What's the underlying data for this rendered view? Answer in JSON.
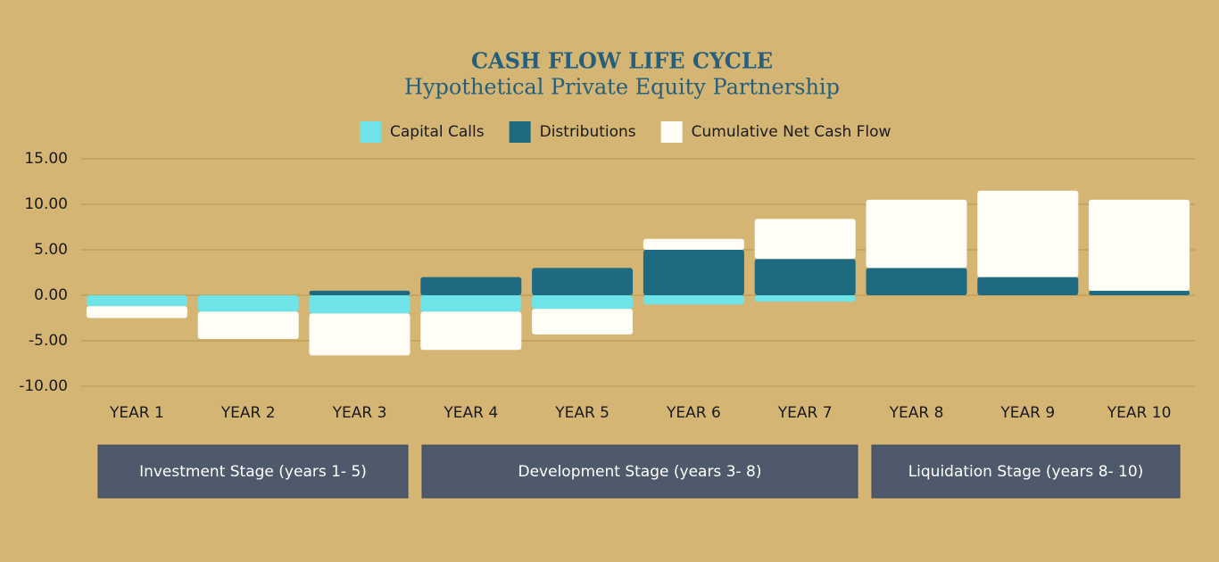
{
  "chart_data": {
    "type": "bar",
    "stacked": true,
    "title": "CASH FLOW LIFE CYCLE",
    "subtitle": "Hypothetical Private Equity Partnership",
    "categories": [
      "YEAR 1",
      "YEAR 2",
      "YEAR 3",
      "YEAR 4",
      "YEAR 5",
      "YEAR 6",
      "YEAR 7",
      "YEAR 8",
      "YEAR 9",
      "YEAR 10"
    ],
    "series": [
      {
        "name": "Capital Calls",
        "color": "#6ee3e8",
        "values": [
          -1.2,
          -1.8,
          -2.0,
          -1.8,
          -1.5,
          -1.0,
          -0.7,
          0,
          0,
          0
        ]
      },
      {
        "name": "Distributions",
        "color": "#1e6a80",
        "values": [
          0,
          0,
          0.5,
          2.0,
          3.0,
          5.0,
          4.0,
          3.0,
          2.0,
          0.5
        ]
      },
      {
        "name": "Cumulative Net Cash Flow",
        "color": "#fffdf6",
        "values": [
          -1.3,
          -3.0,
          -4.6,
          -4.2,
          -2.8,
          1.2,
          4.4,
          7.5,
          9.5,
          10.0
        ]
      }
    ],
    "ylim": [
      -10,
      15
    ],
    "yticks": [
      {
        "value": -10,
        "label": "-10.00"
      },
      {
        "value": -5,
        "label": "-5.00"
      },
      {
        "value": 0,
        "label": "0.00"
      },
      {
        "value": 5,
        "label": "5.00"
      },
      {
        "value": 10,
        "label": "10.00"
      },
      {
        "value": 15,
        "label": "15.00"
      }
    ],
    "grid": true,
    "legend": "top",
    "annotations": [
      "Investment Stage (years 1- 5)",
      "Development Stage (years 3- 8)",
      "Liquidation Stage (years 8- 10)"
    ]
  }
}
